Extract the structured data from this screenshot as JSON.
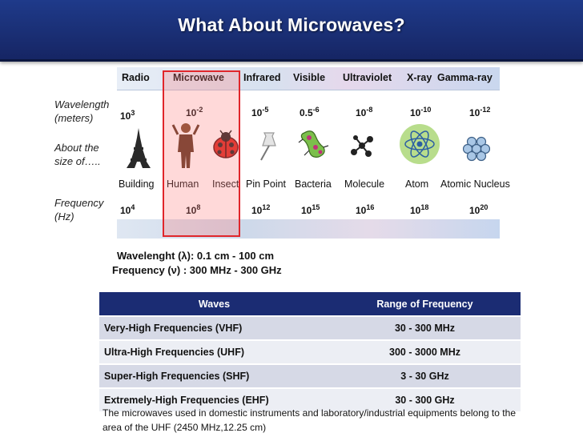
{
  "title": "What About Microwaves?",
  "spectrum": {
    "bands": [
      "Radio",
      "Microwave",
      "Infrared",
      "Visible",
      "Ultraviolet",
      "X-ray",
      "Gamma-ray"
    ],
    "wavelength_label": [
      "Wavelength",
      "(meters)"
    ],
    "size_label": [
      "About the",
      "size of….."
    ],
    "frequency_label": [
      "Frequency",
      "(Hz)"
    ],
    "wavelengths": [
      {
        "base": "10",
        "exp": "3"
      },
      {
        "base": "10",
        "exp": "-2"
      },
      {
        "base": "10",
        "exp": "-5"
      },
      {
        "base": "0.5",
        "exp": "-6"
      },
      {
        "base": "10",
        "exp": "-8"
      },
      {
        "base": "10",
        "exp": "-10"
      },
      {
        "base": "10",
        "exp": "-12"
      }
    ],
    "objects": [
      "Building",
      "Human",
      "Insect",
      "Pin Point",
      "Bacteria",
      "Molecule",
      "Atom",
      "Atomic Nucleus"
    ],
    "frequencies": [
      {
        "base": "10",
        "exp": "4"
      },
      {
        "base": "10",
        "exp": "8"
      },
      {
        "base": "10",
        "exp": "12"
      },
      {
        "base": "10",
        "exp": "15"
      },
      {
        "base": "10",
        "exp": "16"
      },
      {
        "base": "10",
        "exp": "18"
      },
      {
        "base": "10",
        "exp": "20"
      }
    ]
  },
  "info": {
    "wavelength": "Wavelenght (λ): 0.1 cm  - 100 cm",
    "frequency": "Frequency (ν) : 300 MHz  - 300 GHz"
  },
  "table": {
    "headers": [
      "Waves",
      "Range of  Frequency"
    ],
    "rows": [
      [
        "Very-High Frequencies (VHF)",
        "30 - 300 MHz"
      ],
      [
        "Ultra-High Frequencies (UHF)",
        "300 - 3000 MHz"
      ],
      [
        "Super-High Frequencies (SHF)",
        "3 - 30 GHz"
      ],
      [
        "Extremely-High Frequencies (EHF)",
        "30 - 300 GHz"
      ]
    ]
  },
  "note": "The microwaves used in domestic instruments and laboratory/industrial equipments belong to the area of the UHF (2450 MHz,12.25 cm)",
  "colors": {
    "header_bg": "#1a2f75",
    "highlight": "#e0262b",
    "table_header": "#1b2c73"
  },
  "icons": [
    "eiffel-tower-icon",
    "human-figure-icon",
    "ladybug-icon",
    "pushpin-icon",
    "bacteria-icon",
    "molecule-icon",
    "atom-icon",
    "nucleus-icon"
  ]
}
